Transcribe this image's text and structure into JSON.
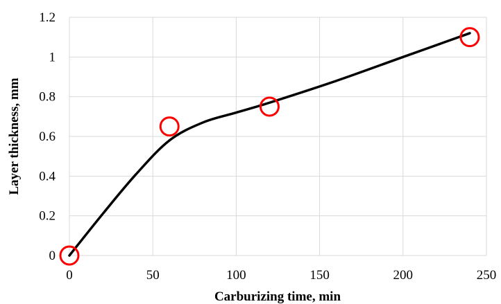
{
  "chart_data": {
    "type": "scatter",
    "title": "",
    "xlabel": "Carburizing time, min",
    "ylabel": "Layer thickness, mm",
    "xlim": [
      0,
      250
    ],
    "ylim": [
      0,
      1.2
    ],
    "x_ticks": [
      0,
      50,
      100,
      150,
      200,
      250
    ],
    "y_ticks": [
      0,
      0.2,
      0.4,
      0.6,
      0.8,
      1,
      1.2
    ],
    "grid": true,
    "legend": "none",
    "series": [
      {
        "kind": "markers",
        "marker": "open-circle",
        "color": "#ff0000",
        "x": [
          0,
          60,
          120,
          240
        ],
        "y": [
          0,
          0.65,
          0.75,
          1.1
        ]
      },
      {
        "kind": "smooth-line",
        "color": "#000000",
        "x": [
          0,
          20,
          40,
          60,
          80,
          100,
          120,
          160,
          200,
          240
        ],
        "y": [
          0,
          0.21,
          0.41,
          0.58,
          0.67,
          0.72,
          0.77,
          0.88,
          1.0,
          1.12
        ]
      }
    ]
  }
}
